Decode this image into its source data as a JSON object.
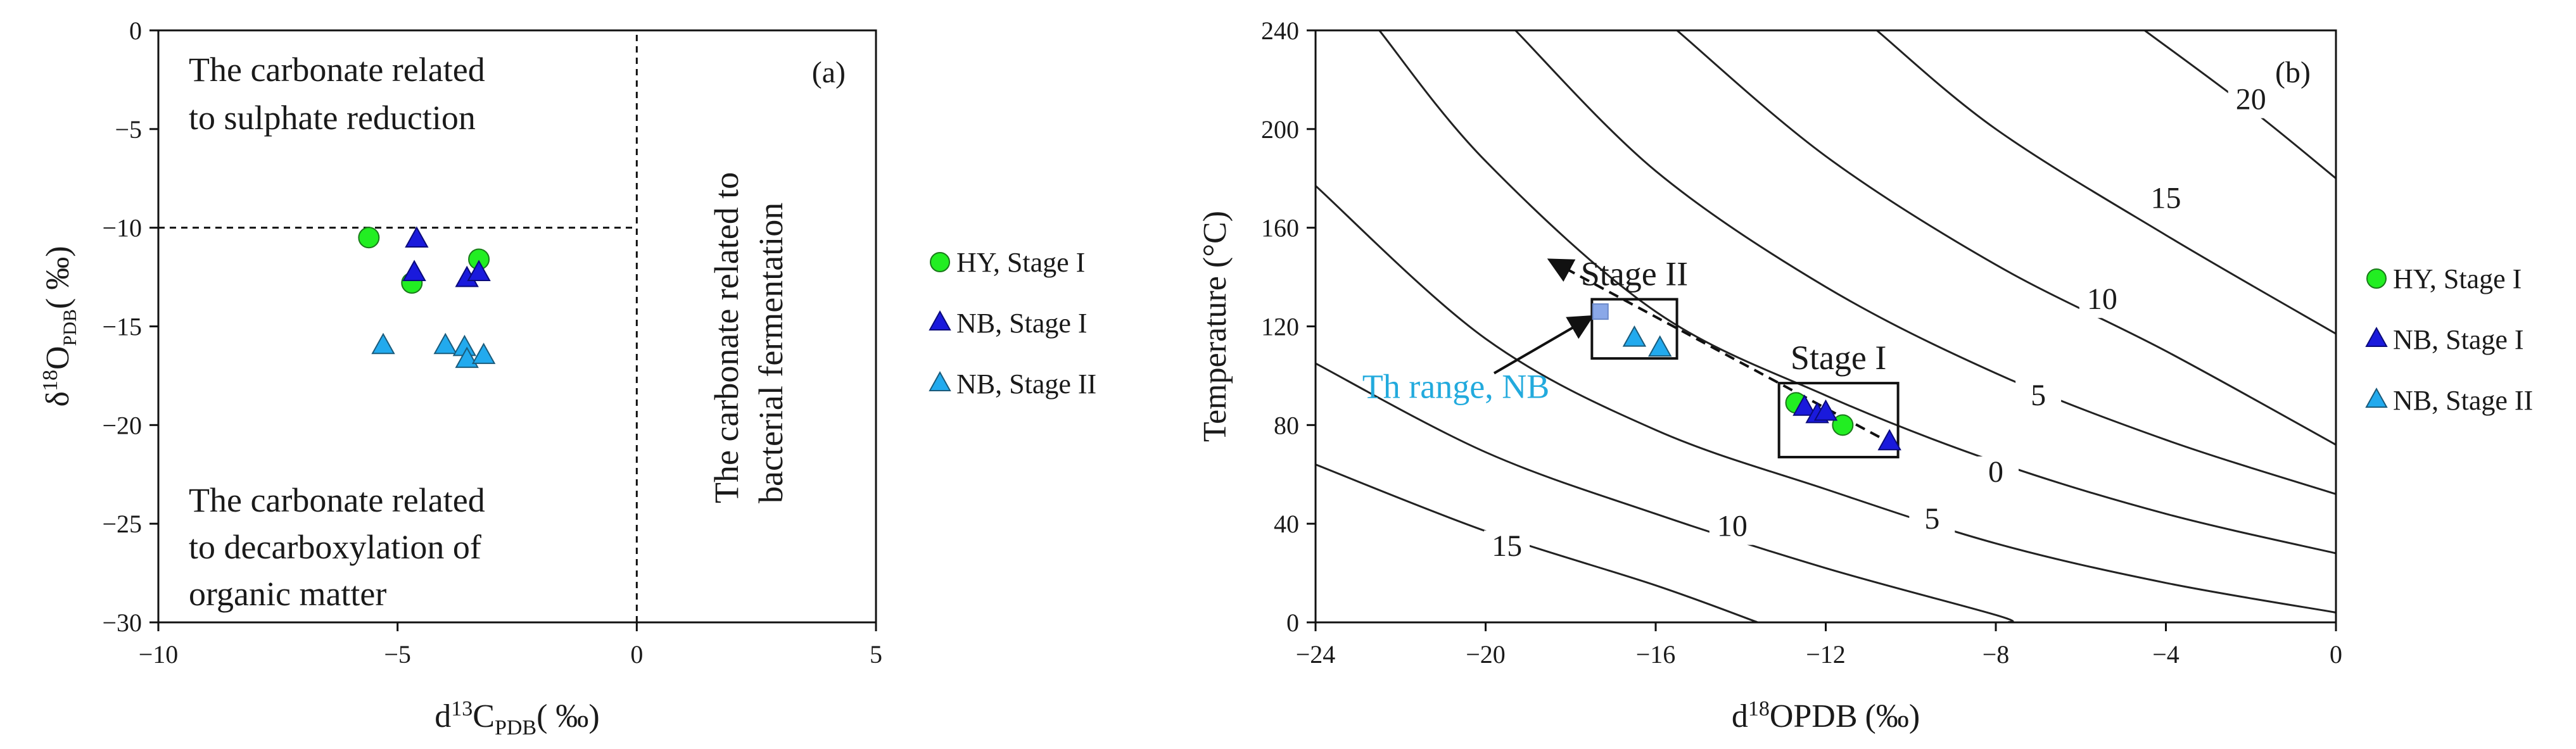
{
  "figure": {
    "colors": {
      "hy_fill": "#22ee22",
      "hy_stroke": "#1a7a1a",
      "nb1_fill": "#1a1adc",
      "nb1_stroke": "#0a0a7a",
      "nb2_fill": "#22aaee",
      "nb2_stroke": "#1a5a7a",
      "th_square": "#8aa8e8",
      "annotation_blue": "#22aadd",
      "contour": "#222222"
    }
  },
  "chart_data": [
    {
      "type": "scatter",
      "panel_tag": "(a)",
      "xlabel_main": "d",
      "xlabel_sup": "13",
      "xlabel_mid": "C",
      "xlabel_sub": "PDB",
      "xlabel_unit": "( ‰)",
      "ylabel_main": "δ",
      "ylabel_sup": "18",
      "ylabel_mid": "O",
      "ylabel_sub": "PDB",
      "ylabel_unit": "( ‰)",
      "xlim": [
        -10,
        5
      ],
      "ylim": [
        -30,
        0
      ],
      "xticks": [
        -10,
        -5,
        0,
        5
      ],
      "xtick_labels": [
        "−10",
        "−5",
        "0",
        "5"
      ],
      "yticks": [
        0,
        -5,
        -10,
        -15,
        -20,
        -25,
        -30
      ],
      "ytick_labels": [
        "0",
        "−5",
        "−10",
        "−15",
        "−20",
        "−25",
        "−30"
      ],
      "divider_lines": [
        {
          "orientation": "horizontal",
          "y": -10,
          "x_from": -10,
          "x_to": 0
        },
        {
          "orientation": "vertical",
          "x": 0,
          "y_from": -30,
          "y_to": 0
        }
      ],
      "regions": [
        {
          "lines": [
            "The carbonate related",
            "to sulphate reduction"
          ]
        },
        {
          "lines": [
            "The carbonate related",
            "to decarboxylation of",
            "organic matter"
          ]
        },
        {
          "lines": [
            "The carbonate related to",
            "bacterial fermentation"
          ]
        }
      ],
      "legend": {
        "position": "right",
        "entries": [
          "HY, Stage I",
          "NB, Stage I",
          "NB, Stage II"
        ]
      },
      "series": [
        {
          "name": "HY, Stage I",
          "marker": "circle",
          "x": [
            -5.6,
            -4.7,
            -3.3
          ],
          "y": [
            -10.5,
            -12.8,
            -11.6
          ]
        },
        {
          "name": "NB, Stage I",
          "marker": "triangle",
          "x": [
            -4.6,
            -4.65,
            -3.55,
            -3.3
          ],
          "y": [
            -10.6,
            -12.3,
            -12.6,
            -12.3
          ]
        },
        {
          "name": "NB, Stage II",
          "marker": "triangle",
          "x": [
            -5.3,
            -4.0,
            -3.6,
            -3.55,
            -3.2
          ],
          "y": [
            -16.0,
            -16.0,
            -16.1,
            -16.7,
            -16.5
          ]
        }
      ]
    },
    {
      "type": "scatter",
      "panel_tag": "(b)",
      "xlabel_main": "d",
      "xlabel_sup": "18",
      "xlabel_mid": "OPDB",
      "xlabel_unit": "(‰)",
      "ylabel": "Temperature (°C)",
      "xlim": [
        -24,
        0
      ],
      "ylim": [
        0,
        240
      ],
      "xticks": [
        -24,
        -20,
        -16,
        -12,
        -8,
        -4,
        0
      ],
      "xtick_labels": [
        "−24",
        "−20",
        "−16",
        "−12",
        "−8",
        "−4",
        "0"
      ],
      "yticks": [
        0,
        40,
        80,
        120,
        160,
        200,
        240
      ],
      "ytick_labels": [
        "0",
        "40",
        "80",
        "120",
        "160",
        "200",
        "240"
      ],
      "contours": [
        {
          "label": "15",
          "points": [
            [
              -24,
              64
            ],
            [
              -20,
              37
            ],
            [
              -16,
              15
            ],
            [
              -13.6,
              0
            ]
          ]
        },
        {
          "label": "10",
          "points": [
            [
              -24,
              105
            ],
            [
              -20,
              69
            ],
            [
              -16,
              44
            ],
            [
              -12,
              22
            ],
            [
              -8,
              3
            ],
            [
              -7.7,
              0
            ]
          ]
        },
        {
          "label": "5",
          "points": [
            [
              -24,
              177
            ],
            [
              -20,
              115
            ],
            [
              -16,
              78
            ],
            [
              -12,
              54
            ],
            [
              -8,
              32
            ],
            [
              -4,
              16
            ],
            [
              0,
              4
            ]
          ]
        },
        {
          "label": "0",
          "points": [
            [
              -22.5,
              240
            ],
            [
              -20,
              187
            ],
            [
              -16,
              126
            ],
            [
              -12,
              92
            ],
            [
              -8,
              65
            ],
            [
              -4,
              44
            ],
            [
              0,
              28
            ]
          ]
        },
        {
          "label": "5",
          "points": [
            [
              -19.3,
              240
            ],
            [
              -16,
              183
            ],
            [
              -12,
              136
            ],
            [
              -8,
              101
            ],
            [
              -4,
              74
            ],
            [
              0,
              52
            ]
          ]
        },
        {
          "label": "10",
          "points": [
            [
              -15.5,
              240
            ],
            [
              -12,
              189
            ],
            [
              -8,
              145
            ],
            [
              -4,
              110
            ],
            [
              0,
              72
            ]
          ]
        },
        {
          "label": "15",
          "points": [
            [
              -10.8,
              240
            ],
            [
              -8,
              200
            ],
            [
              -4,
              157
            ],
            [
              0,
              117
            ]
          ]
        },
        {
          "label": "20",
          "points": [
            [
              -4.5,
              240
            ],
            [
              -2,
              208
            ],
            [
              0,
              180
            ]
          ]
        }
      ],
      "contour_labels": [
        {
          "text": "15",
          "x": -19.5,
          "y": 27
        },
        {
          "text": "10",
          "x": -14.2,
          "y": 35
        },
        {
          "text": "5",
          "x": -9.5,
          "y": 38
        },
        {
          "text": "0",
          "x": -8.0,
          "y": 57
        },
        {
          "text": "5",
          "x": -7.0,
          "y": 88
        },
        {
          "text": "10",
          "x": -5.5,
          "y": 127
        },
        {
          "text": "15",
          "x": -4.0,
          "y": 168
        },
        {
          "text": "20",
          "x": -2.0,
          "y": 208
        }
      ],
      "stage_boxes": [
        {
          "label": "Stage II",
          "x_range": [
            -17.5,
            -15.5
          ],
          "y_range": [
            107,
            131
          ]
        },
        {
          "label": "Stage I",
          "x_range": [
            -13.1,
            -10.3
          ],
          "y_range": [
            67,
            97
          ]
        }
      ],
      "trend_arrow": {
        "from": [
          -10.4,
          72
        ],
        "to": [
          -18.5,
          147
        ]
      },
      "th_range": {
        "label": "Th range, NB",
        "square_x": -17.3,
        "square_y": 126,
        "arrow_from": [
          -19.8,
          101
        ],
        "arrow_to": [
          -17.5,
          124
        ]
      },
      "legend": {
        "position": "right",
        "entries": [
          "HY, Stage I",
          "NB, Stage I",
          "NB, Stage II"
        ]
      },
      "series": [
        {
          "name": "HY, Stage I",
          "marker": "circle",
          "x": [
            -12.7,
            -11.6
          ],
          "y": [
            89,
            80
          ]
        },
        {
          "name": "NB, Stage I",
          "marker": "triangle",
          "x": [
            -12.5,
            -12.2,
            -12.0,
            -10.5
          ],
          "y": [
            87,
            84,
            85,
            73
          ]
        },
        {
          "name": "NB, Stage II",
          "marker": "triangle",
          "x": [
            -16.5,
            -15.9
          ],
          "y": [
            115,
            111
          ]
        }
      ]
    }
  ]
}
